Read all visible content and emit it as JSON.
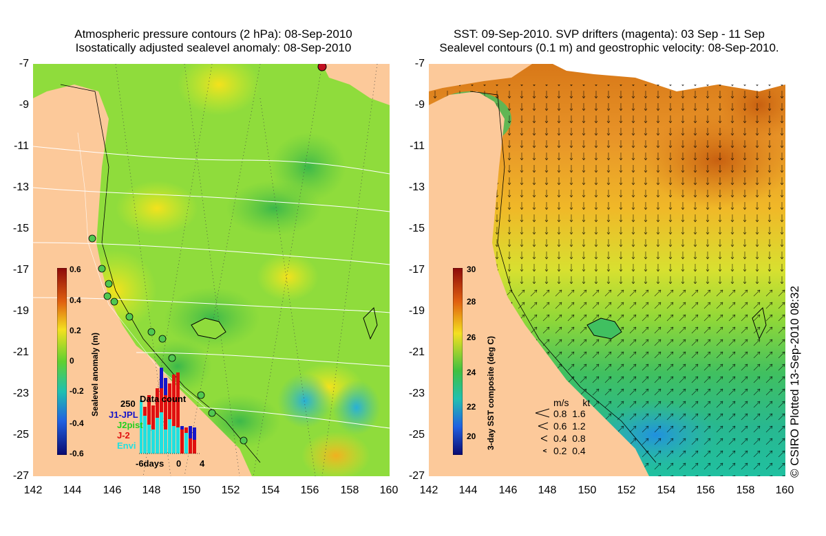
{
  "left_panel": {
    "title_line1": "Atmospheric pressure contours (2 hPa): 08-Sep-2010",
    "title_line2": "Isostatically adjusted sealevel anomaly: 08-Sep-2010",
    "colorbar": {
      "label": "Sealevel anomaly (m)",
      "ticks": [
        "0.6",
        "0.4",
        "0.2",
        "0",
        "-0.2",
        "-0.4",
        "-0.6"
      ]
    },
    "inset": {
      "title": "Data count",
      "count_label": "250",
      "legend": [
        {
          "name": "J1-JPL",
          "color": "#1515c8"
        },
        {
          "name": "J2pist",
          "color": "#20d020"
        },
        {
          "name": "J-2",
          "color": "#e01010"
        },
        {
          "name": "Envi",
          "color": "#20e0e0"
        }
      ],
      "x_ticks": [
        "-6days",
        "0",
        "4"
      ]
    }
  },
  "right_panel": {
    "title_line1": "SST: 09-Sep-2010. SVP drifters (magenta): 03 Sep - 11 Sep",
    "title_line2": "Sealevel contours (0.1 m) and geostrophic velocity: 08-Sep-2010.",
    "colorbar": {
      "label": "3-day SST composite (deg C)",
      "ticks": [
        "30",
        "28",
        "26",
        "24",
        "22",
        "20"
      ]
    },
    "velocity_legend": {
      "header_ms": "m/s",
      "header_kt": "kt",
      "rows": [
        {
          "ms": "0.8",
          "kt": "1.6"
        },
        {
          "ms": "0.6",
          "kt": "1.2"
        },
        {
          "ms": "0.4",
          "kt": "0.8"
        },
        {
          "ms": "0.2",
          "kt": "0.4"
        }
      ]
    }
  },
  "axes": {
    "lat_ticks": [
      "-7",
      "-9",
      "-11",
      "-13",
      "-15",
      "-17",
      "-19",
      "-21",
      "-23",
      "-25",
      "-27"
    ],
    "lon_ticks": [
      "142",
      "144",
      "146",
      "148",
      "150",
      "152",
      "154",
      "156",
      "158",
      "160"
    ]
  },
  "credit": "© CSIRO Plotted 13-Sep-2010 08:32",
  "colors": {
    "land": "#fcc99a",
    "sla_field": "#8fdc3c",
    "sst_warm": "#f0a020",
    "sst_cool": "#30c060"
  }
}
